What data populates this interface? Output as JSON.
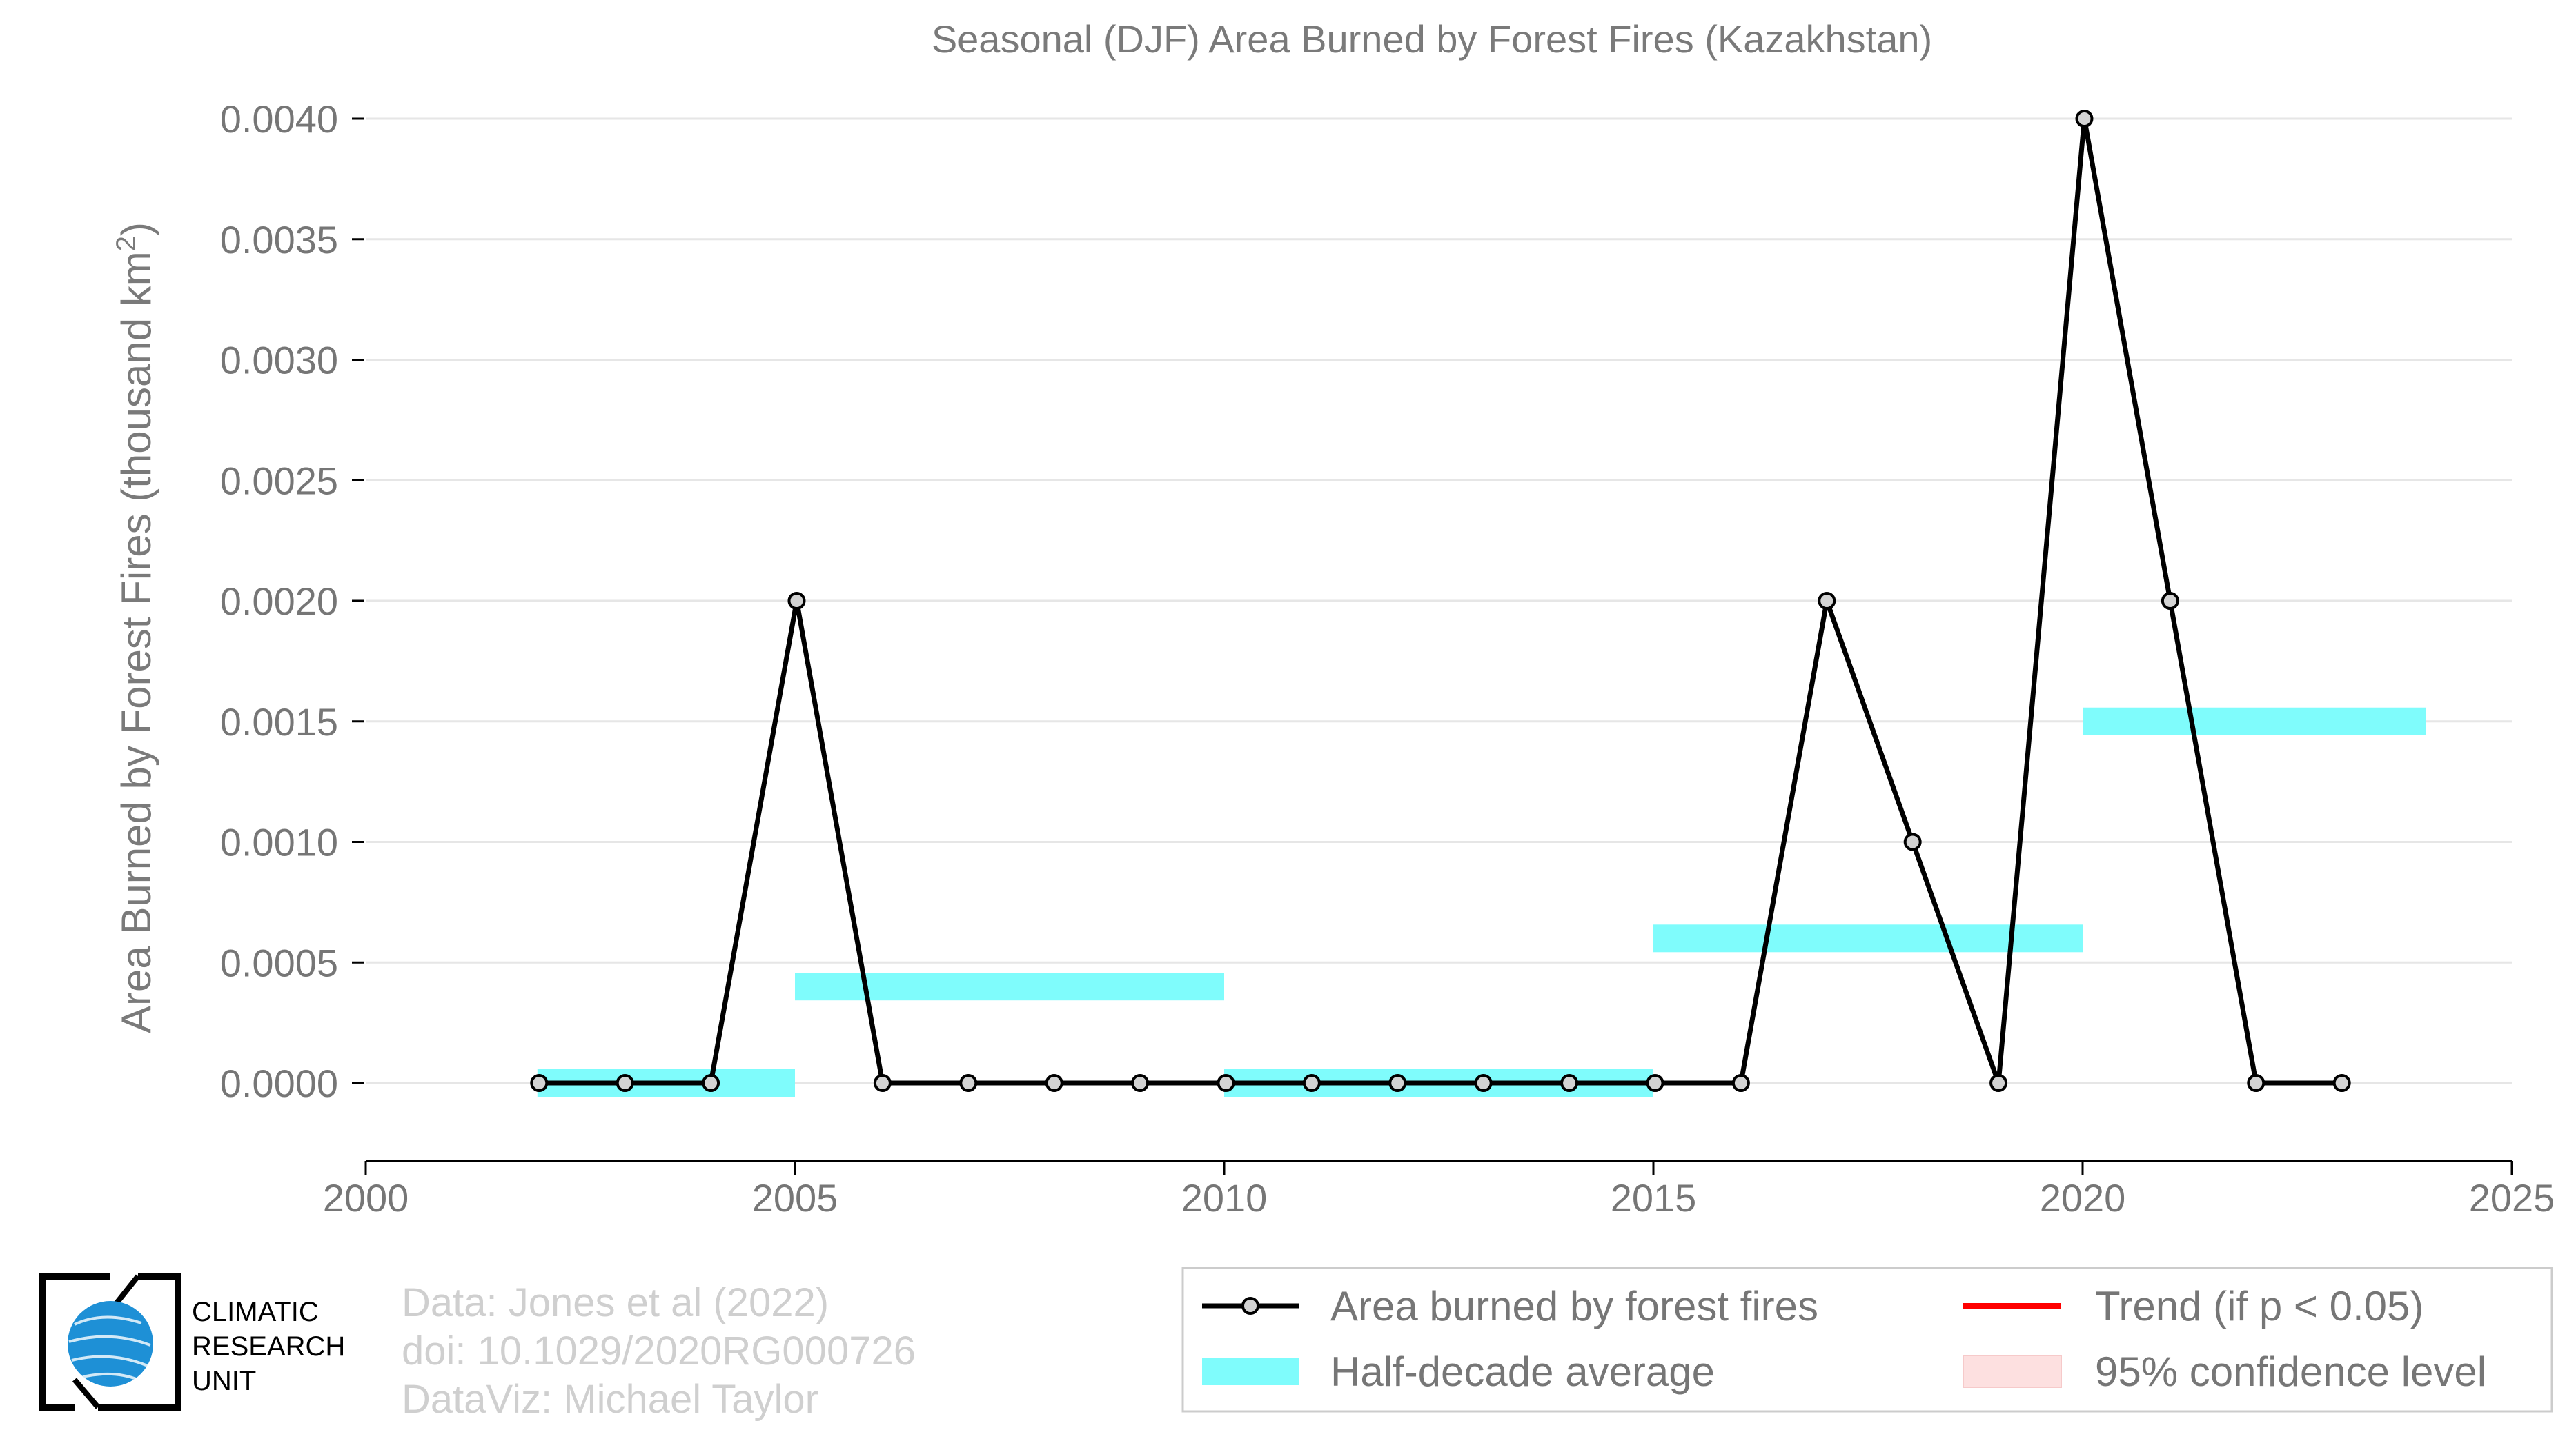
{
  "chart_data": {
    "type": "line",
    "title": "Seasonal (DJF) Area Burned by Forest Fires (Kazakhstan)",
    "ylabel_main": "Area Burned by Forest Fires (thousand km",
    "ylabel_sup": "2",
    "ylabel_close": ")",
    "xlabel": "",
    "xlim": [
      2000,
      2025
    ],
    "ylim": [
      -0.00032,
      0.004
    ],
    "x_ticks": [
      2000,
      2005,
      2010,
      2015,
      2020,
      2025
    ],
    "x_tick_labels": [
      "2000",
      "2005",
      "2010",
      "2015",
      "2020",
      "2025"
    ],
    "y_ticks": [
      0,
      0.0005,
      0.001,
      0.0015,
      0.002,
      0.0025,
      0.003,
      0.0035,
      0.004
    ],
    "y_tick_labels": [
      "0.0000",
      "0.0005",
      "0.0010",
      "0.0015",
      "0.0020",
      "0.0025",
      "0.0030",
      "0.0035",
      "0.0040"
    ],
    "grid": "horizontal",
    "series": [
      {
        "name": "Area burned by forest fires",
        "color": "#000000",
        "marker_fill": "#d3d3d3",
        "x": [
          2002,
          2003,
          2004,
          2005,
          2006,
          2007,
          2008,
          2009,
          2010,
          2011,
          2012,
          2013,
          2014,
          2015,
          2016,
          2017,
          2018,
          2019,
          2020,
          2021,
          2022,
          2023
        ],
        "values": [
          0,
          0,
          0,
          0.002,
          0,
          0,
          0,
          0,
          0,
          0,
          0,
          0,
          0,
          0,
          0,
          0.002,
          0.001,
          0,
          0.004,
          0.002,
          0,
          0
        ]
      }
    ],
    "half_decade_average": {
      "name": "Half-decade average",
      "color": "#7ffcfc",
      "segments": [
        {
          "x_start": 2002,
          "x_end": 2005,
          "value": 0
        },
        {
          "x_start": 2005,
          "x_end": 2010,
          "value": 0.0004
        },
        {
          "x_start": 2010,
          "x_end": 2015,
          "value": 0
        },
        {
          "x_start": 2015,
          "x_end": 2020,
          "value": 0.0006
        },
        {
          "x_start": 2020,
          "x_end": 2024,
          "value": 0.0015
        }
      ]
    },
    "legend": {
      "placement": "bottom-right",
      "entries": [
        {
          "key": "line",
          "label": "Area burned by forest fires",
          "color": "#000000"
        },
        {
          "key": "trend",
          "label": "Trend (if p < 0.05)",
          "color": "#ff0000"
        },
        {
          "key": "average",
          "label": "Half-decade average",
          "color": "#7ffcfc"
        },
        {
          "key": "confidence",
          "label": "95% confidence level",
          "color": "#fde0e0"
        }
      ]
    }
  },
  "credits": {
    "data": "Data: Jones et al (2022)",
    "doi": "doi: 10.1029/2020RG000726",
    "dataviz": "DataViz: Michael Taylor"
  },
  "logo": {
    "line1": "CLIMATIC",
    "line2": "RESEARCH",
    "line3": "UNIT",
    "globe_color": "#1e90d6"
  }
}
